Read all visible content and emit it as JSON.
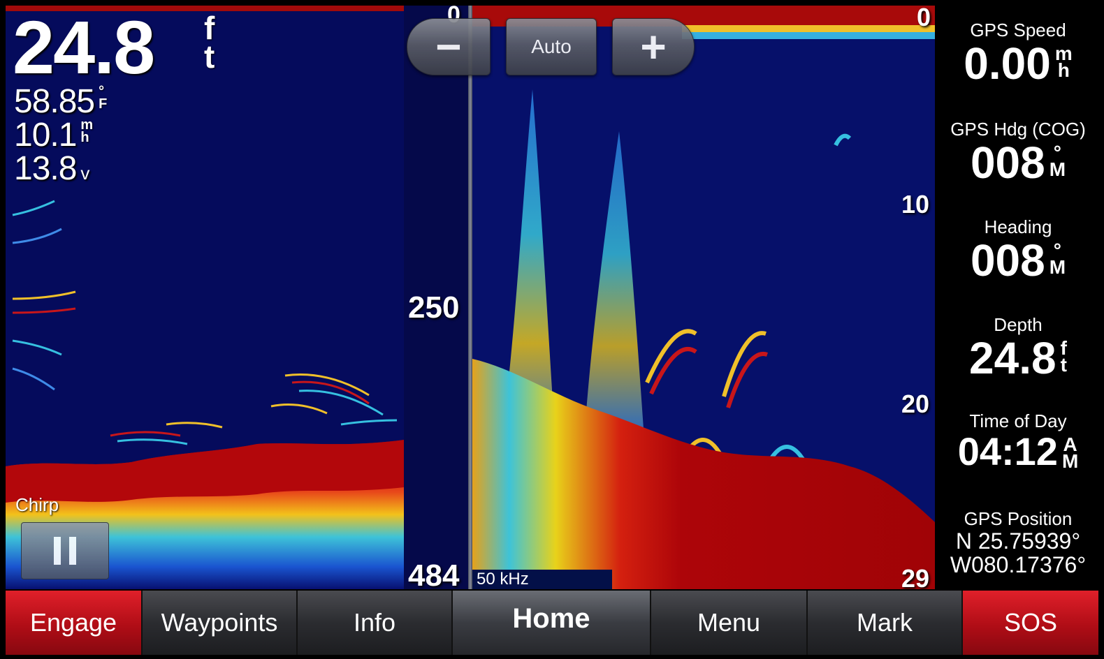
{
  "readouts": {
    "depth_value": "24.8",
    "depth_unit": [
      "f",
      "t"
    ],
    "temperature_value": "58.85",
    "temperature_unit": [
      "°",
      "F"
    ],
    "speed_value": "10.1",
    "speed_unit": [
      "m",
      "h"
    ],
    "voltage_value": "13.8",
    "voltage_unit": "v"
  },
  "scale": {
    "mid_top": "0",
    "mid_middle": "250",
    "mid_bottom": "484",
    "right_top": "0",
    "right_10": "10",
    "right_20": "20",
    "right_bottom": "29"
  },
  "zoom": {
    "minus": "−",
    "auto": "Auto",
    "plus": "+"
  },
  "sonar_mode": "Chirp",
  "frequency": "50 kHz",
  "sidebar": {
    "gps_speed": {
      "label": "GPS Speed",
      "value": "0.00",
      "unit": [
        "m",
        "h"
      ]
    },
    "gps_heading": {
      "label": "GPS Hdg (COG)",
      "value": "008",
      "unit": [
        "°",
        "M"
      ]
    },
    "heading": {
      "label": "Heading",
      "value": "008",
      "unit": [
        "°",
        "M"
      ]
    },
    "depth": {
      "label": "Depth",
      "value": "24.8",
      "unit": [
        "f",
        "t"
      ]
    },
    "time": {
      "label": "Time of Day",
      "value": "04:12",
      "unit": [
        "A",
        "M"
      ]
    },
    "position": {
      "label": "GPS Position",
      "lat": "N  25.75939°",
      "lon": "W080.17376°"
    }
  },
  "bottom_bar": [
    "Engage",
    "Waypoints",
    "Info",
    "Home",
    "Menu",
    "Mark",
    "SOS"
  ],
  "colors": {
    "water": "#050b5c",
    "bottom_red": "#b0060a",
    "accent_red": "#c8101a"
  }
}
